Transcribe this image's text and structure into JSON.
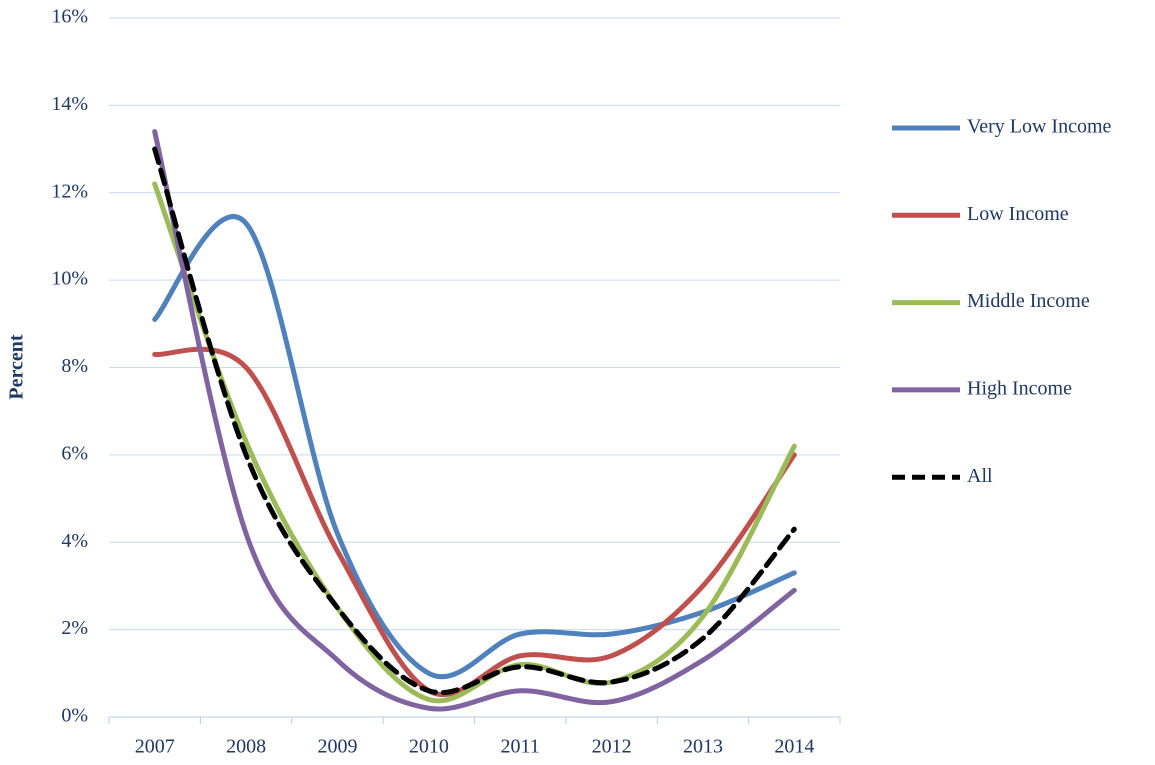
{
  "chart_data": {
    "type": "line",
    "y_label": "Percent",
    "categories": [
      "2007",
      "2008",
      "2009",
      "2010",
      "2011",
      "2012",
      "2013",
      "2014"
    ],
    "series": [
      {
        "name": "Very Low Income",
        "color": "#4f81bd",
        "dashed": false,
        "values": [
          9.1,
          11.3,
          4.2,
          1.0,
          1.9,
          1.9,
          2.4,
          3.3
        ]
      },
      {
        "name": "Low Income",
        "color": "#c0504d",
        "dashed": false,
        "values": [
          8.3,
          8.0,
          3.8,
          0.6,
          1.4,
          1.4,
          3.0,
          6.0
        ]
      },
      {
        "name": "Middle Income",
        "color": "#9bbb59",
        "dashed": false,
        "values": [
          12.2,
          6.3,
          2.5,
          0.4,
          1.2,
          0.8,
          2.3,
          6.2
        ]
      },
      {
        "name": "High Income",
        "color": "#8064a2",
        "dashed": false,
        "values": [
          13.4,
          4.2,
          1.3,
          0.2,
          0.6,
          0.35,
          1.3,
          2.9
        ]
      },
      {
        "name": "All",
        "color": "#000000",
        "dashed": true,
        "values": [
          13.0,
          6.0,
          2.5,
          0.6,
          1.15,
          0.8,
          1.8,
          4.3
        ]
      }
    ],
    "ylim": [
      0,
      16
    ],
    "yticks": [
      {
        "value": 0,
        "label": "0%"
      },
      {
        "value": 2,
        "label": "2%"
      },
      {
        "value": 4,
        "label": "4%"
      },
      {
        "value": 6,
        "label": "6%"
      },
      {
        "value": 8,
        "label": "8%"
      },
      {
        "value": 10,
        "label": "10%"
      },
      {
        "value": 12,
        "label": "12%"
      },
      {
        "value": 14,
        "label": "14%"
      },
      {
        "value": 16,
        "label": "16%"
      }
    ],
    "grid": true,
    "smooth": true,
    "legend": "right"
  }
}
